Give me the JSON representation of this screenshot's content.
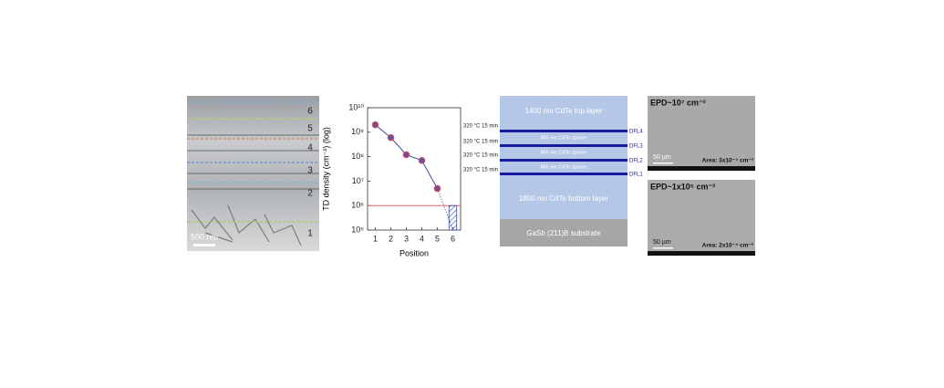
{
  "tem_panel": {
    "labels": [
      "6",
      "5",
      "4",
      "3",
      "2",
      "1"
    ],
    "scale_bar": "500 nm"
  },
  "chart_data": {
    "type": "line",
    "x_label": "Position",
    "y_label": "TD density (cm⁻²) (log)",
    "x": [
      1,
      2,
      3,
      4,
      5
    ],
    "series": [
      {
        "color": "#3b4b9e",
        "marker_color": "#6b4fa0",
        "marker_edge": "#e05050",
        "values": [
          2000000000,
          600000000,
          120000000,
          70000000,
          5000000
        ]
      }
    ],
    "xlim": [
      0.5,
      6.5
    ],
    "xticks": [
      1,
      2,
      3,
      4,
      5,
      6
    ],
    "ylim": [
      100000,
      10000000000
    ],
    "yticks": [
      {
        "value": 100000,
        "label": "10⁵"
      },
      {
        "value": 1000000,
        "label": "10⁶"
      },
      {
        "value": 10000000,
        "label": "10⁷"
      },
      {
        "value": 100000000,
        "label": "10⁸"
      },
      {
        "value": 1000000000,
        "label": "10⁹"
      },
      {
        "value": 10000000000,
        "label": "10¹⁰"
      }
    ],
    "log_y": true,
    "reference_line": {
      "value": 1000000,
      "color": "#e05050"
    },
    "target_box": {
      "x": 6,
      "low": 100000,
      "high": 1000000,
      "color": "#3b4b9e"
    }
  },
  "layer_stack": {
    "top_layer": "1400 nm CdTe top layer",
    "spacers": [
      "465 nm CdTe spacer",
      "465 nm CdTe spacer",
      "465 nm CdTe spacer"
    ],
    "bottom_layer": "1850 nm CdTe bottom layer",
    "substrate": "GaSb (211)B substrate",
    "anneal_labels": [
      "320 °C 15 min",
      "320 °C 15 min",
      "320 °C 15 min",
      "320 °C 15 min"
    ],
    "dfl_labels": [
      "DFL4",
      "DFL3",
      "DFL2",
      "DFL1"
    ]
  },
  "sem_panels": [
    {
      "title": "EPD~10⁷ cm⁻²",
      "scale_bar": "50 µm",
      "area": "Area: 3x10⁻⁴ cm⁻²"
    },
    {
      "title": "EPD~1x10⁵ cm⁻²",
      "scale_bar": "50 µm",
      "area": "Area: 2x10⁻⁴ cm⁻²"
    }
  ]
}
